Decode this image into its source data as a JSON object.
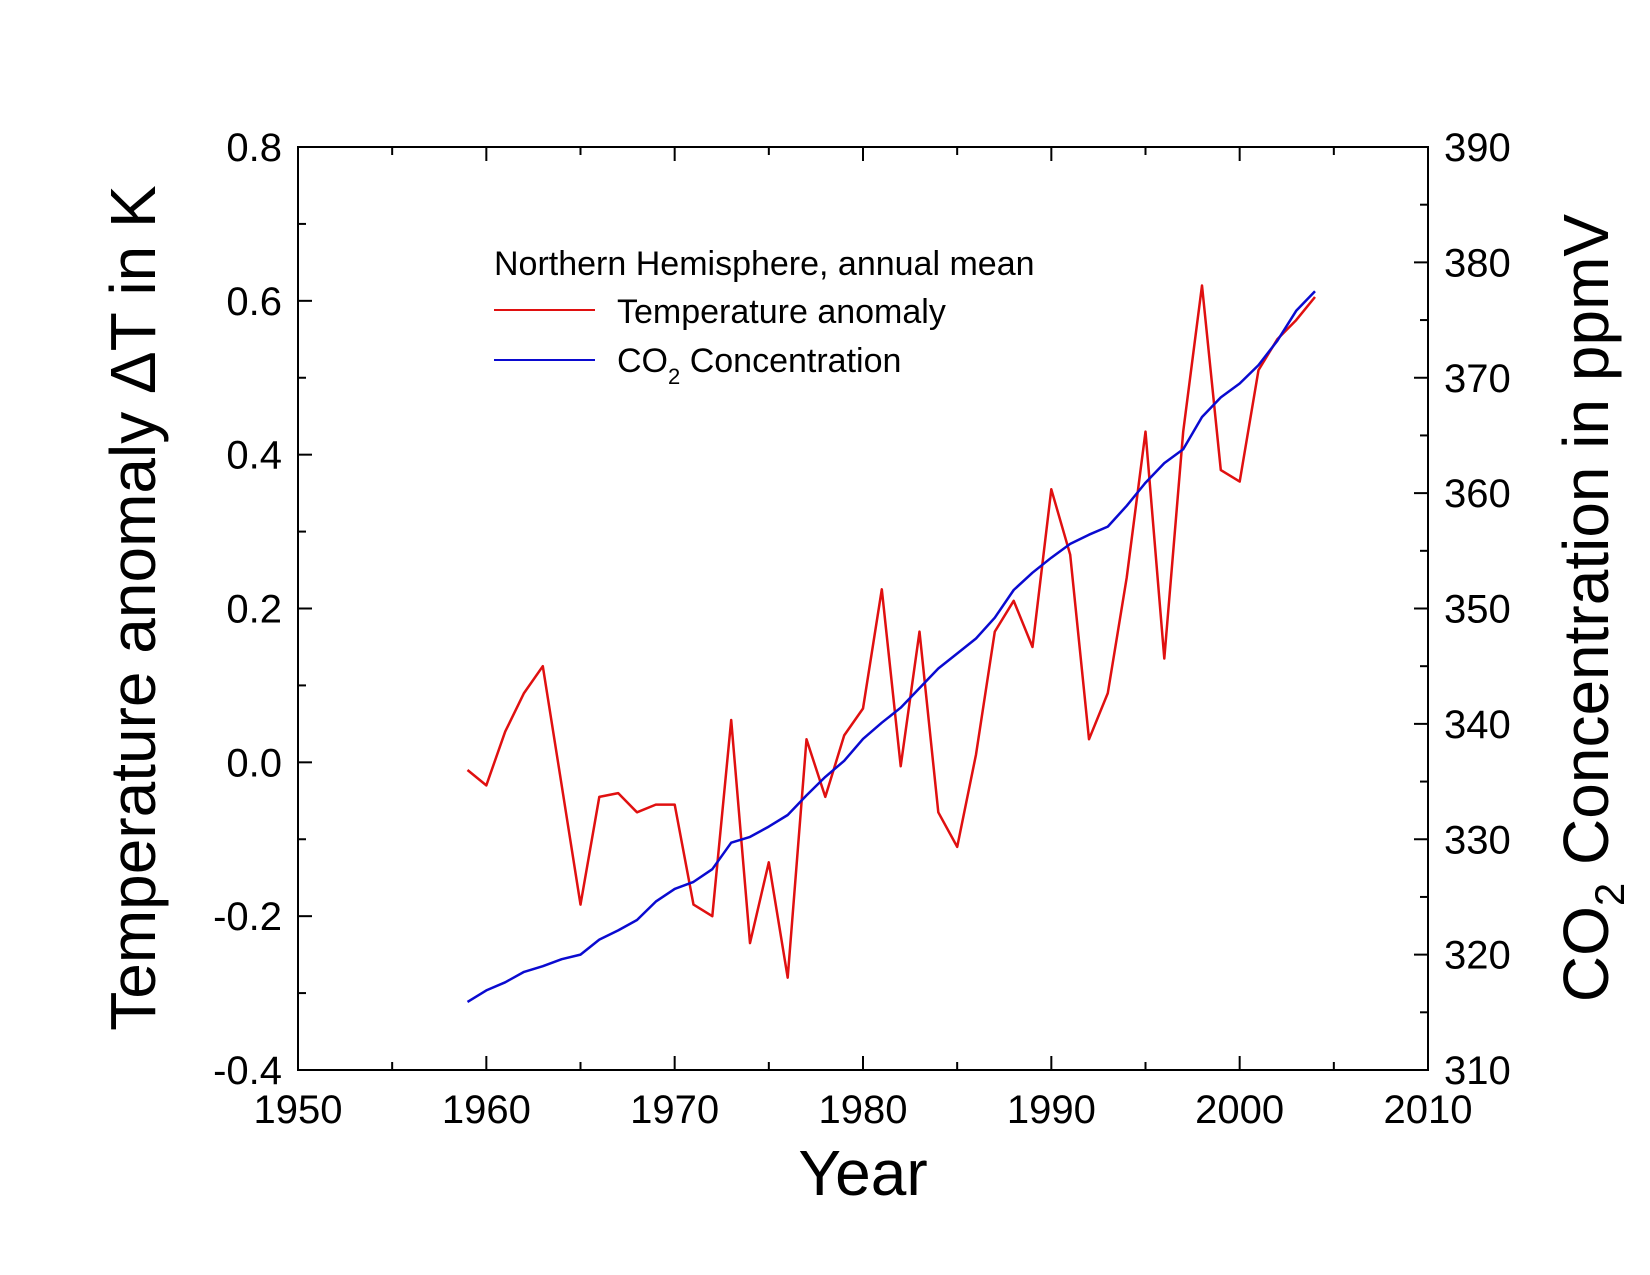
{
  "chart_data": {
    "type": "line",
    "xlabel": "Year",
    "ylabel_left": "Temperature anomaly ΔT in K",
    "ylabel_right": {
      "main": "CO",
      "sub": "2",
      "rest": " Concentration in ppmV"
    },
    "xlim": [
      1950,
      2010
    ],
    "ylim_left": [
      -0.4,
      0.8
    ],
    "ylim_right": [
      310,
      390
    ],
    "x_ticks": [
      1950,
      1960,
      1970,
      1980,
      1990,
      2000,
      2010
    ],
    "y_left_ticks": [
      "-0.4",
      "-0.2",
      "0.0",
      "0.2",
      "0.4",
      "0.6",
      "0.8"
    ],
    "y_right_ticks": [
      "310",
      "320",
      "330",
      "340",
      "350",
      "360",
      "370",
      "380",
      "390"
    ],
    "legend": {
      "title": "Northern Hemisphere, annual mean",
      "entries": [
        {
          "label": "Temperature anomaly",
          "color": "#e01010"
        },
        {
          "label_main": "CO",
          "label_sub": "2",
          "label_rest": " Concentration",
          "color": "#0a0ad0"
        }
      ]
    },
    "series": [
      {
        "name": "Temperature anomaly",
        "axis": "left",
        "color": "#e01010",
        "x": [
          1959,
          1960,
          1961,
          1962,
          1963,
          1964,
          1965,
          1966,
          1967,
          1968,
          1969,
          1970,
          1971,
          1972,
          1973,
          1974,
          1975,
          1976,
          1977,
          1978,
          1979,
          1980,
          1981,
          1982,
          1983,
          1984,
          1985,
          1986,
          1987,
          1988,
          1989,
          1990,
          1991,
          1992,
          1993,
          1994,
          1995,
          1996,
          1997,
          1998,
          1999,
          2000,
          2001,
          2002,
          2003,
          2004
        ],
        "y": [
          -0.01,
          -0.03,
          0.04,
          0.09,
          0.125,
          -0.03,
          -0.185,
          -0.045,
          -0.04,
          -0.065,
          -0.055,
          -0.055,
          -0.185,
          -0.2,
          0.055,
          -0.235,
          -0.13,
          -0.28,
          0.03,
          -0.045,
          0.035,
          0.07,
          0.225,
          -0.005,
          0.17,
          -0.065,
          -0.11,
          0.01,
          0.17,
          0.21,
          0.15,
          0.355,
          0.27,
          0.03,
          0.09,
          0.24,
          0.43,
          0.135,
          0.43,
          0.62,
          0.38,
          0.365,
          0.51,
          0.55,
          0.575,
          0.605
        ]
      },
      {
        "name": "CO2 Concentration",
        "axis": "right",
        "color": "#0a0ad0",
        "x": [
          1959,
          1960,
          1961,
          1962,
          1963,
          1964,
          1965,
          1966,
          1967,
          1968,
          1969,
          1970,
          1971,
          1972,
          1973,
          1974,
          1975,
          1976,
          1977,
          1978,
          1979,
          1980,
          1981,
          1982,
          1983,
          1984,
          1985,
          1986,
          1987,
          1988,
          1989,
          1990,
          1991,
          1992,
          1993,
          1994,
          1995,
          1996,
          1997,
          1998,
          1999,
          2000,
          2001,
          2002,
          2003,
          2004
        ],
        "y": [
          315.9,
          316.9,
          317.6,
          318.5,
          319.0,
          319.6,
          320.0,
          321.3,
          322.1,
          323.0,
          324.6,
          325.7,
          326.3,
          327.4,
          329.7,
          330.2,
          331.1,
          332.1,
          333.8,
          335.4,
          336.8,
          338.7,
          340.1,
          341.4,
          343.1,
          344.8,
          346.1,
          347.4,
          349.2,
          351.6,
          353.1,
          354.4,
          355.6,
          356.4,
          357.1,
          358.9,
          360.9,
          362.6,
          363.8,
          366.6,
          368.3,
          369.5,
          371.1,
          373.2,
          375.8,
          377.5
        ]
      }
    ]
  }
}
